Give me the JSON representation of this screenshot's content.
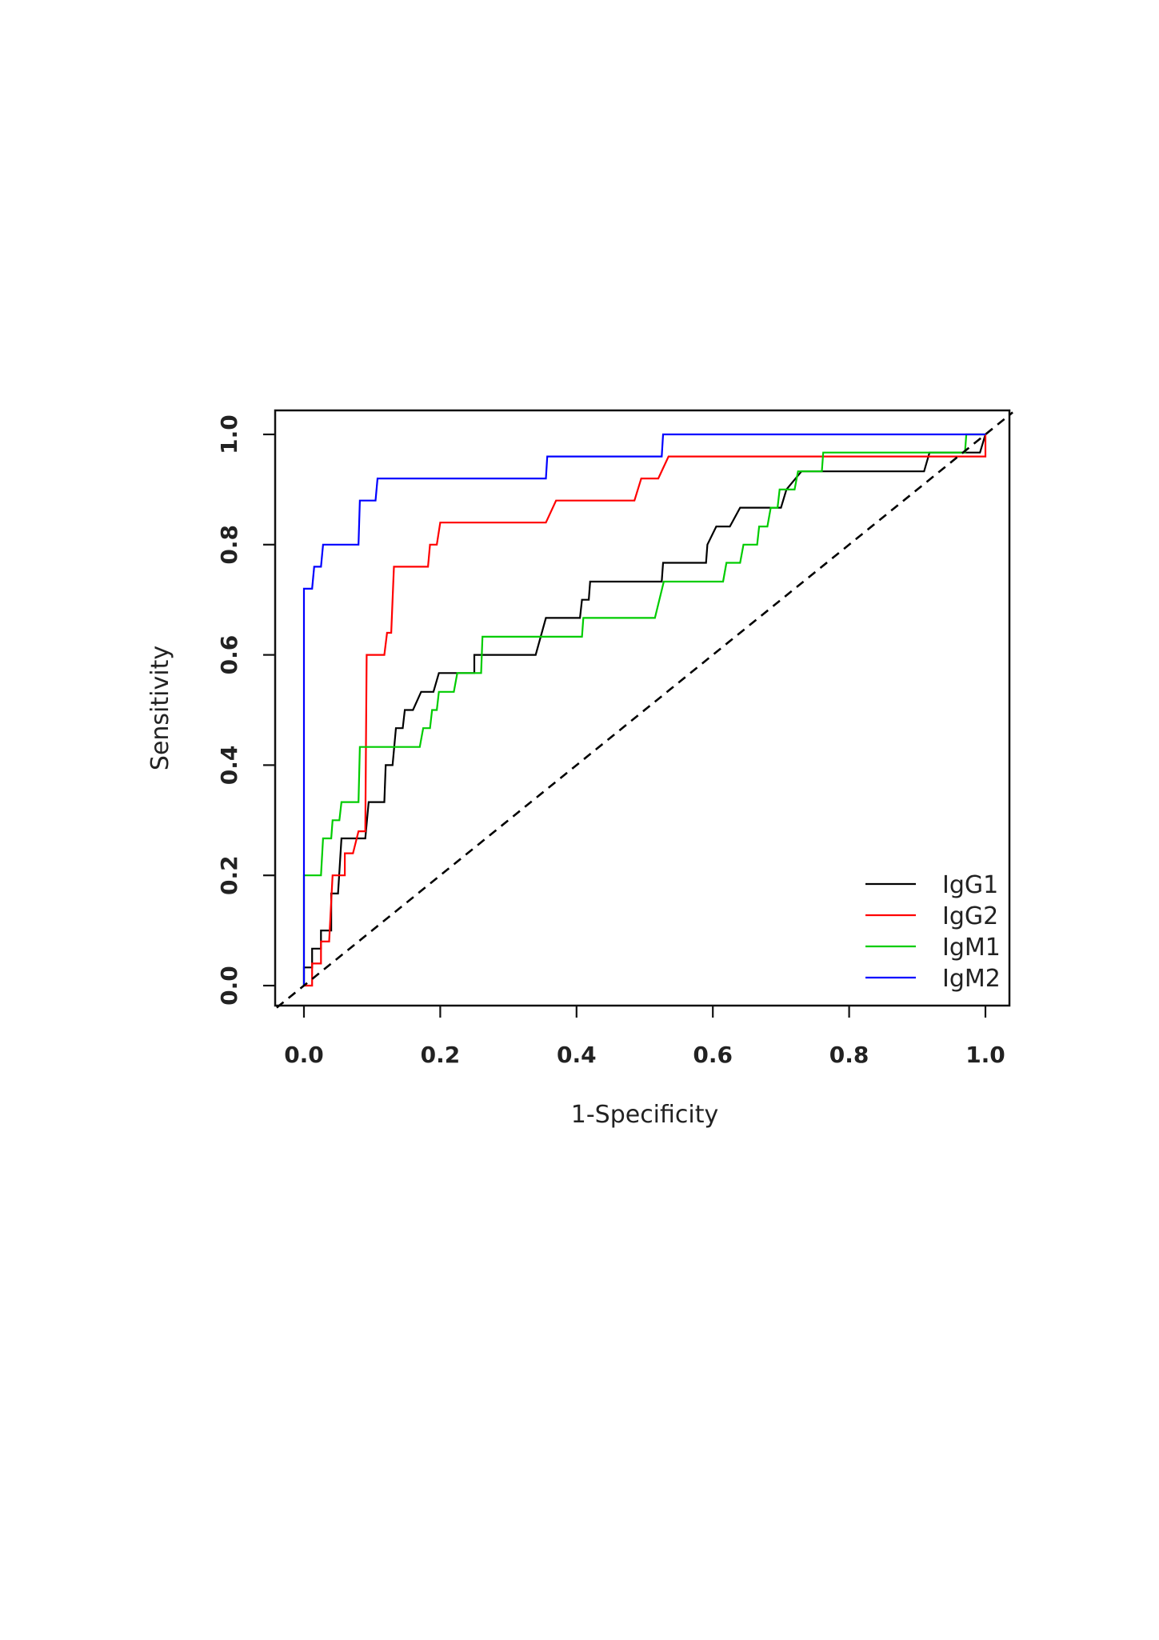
{
  "chart_data": {
    "type": "line",
    "title": "",
    "xlabel": "1-Specificity",
    "ylabel": "Sensitivity",
    "xlim": [
      0,
      1
    ],
    "ylim": [
      0,
      1
    ],
    "x_ticks": [
      "0.0",
      "0.2",
      "0.4",
      "0.6",
      "0.8",
      "1.0"
    ],
    "y_ticks": [
      "0.0",
      "0.2",
      "0.4",
      "0.6",
      "0.8",
      "1.0"
    ],
    "grid": false,
    "legend_position": "bottom-right",
    "reference_line": {
      "style": "dashed",
      "color": "#000000",
      "points": [
        [
          0,
          0
        ],
        [
          1,
          1
        ]
      ]
    },
    "series": [
      {
        "name": "IgG1",
        "color": "#000000",
        "points": [
          [
            0,
            0
          ],
          [
            0,
            0.033
          ],
          [
            0.012,
            0.033
          ],
          [
            0.012,
            0.067
          ],
          [
            0.025,
            0.067
          ],
          [
            0.025,
            0.1
          ],
          [
            0.04,
            0.1
          ],
          [
            0.04,
            0.167
          ],
          [
            0.05,
            0.167
          ],
          [
            0.055,
            0.267
          ],
          [
            0.09,
            0.267
          ],
          [
            0.095,
            0.333
          ],
          [
            0.118,
            0.333
          ],
          [
            0.12,
            0.4
          ],
          [
            0.13,
            0.4
          ],
          [
            0.135,
            0.467
          ],
          [
            0.145,
            0.467
          ],
          [
            0.148,
            0.5
          ],
          [
            0.16,
            0.5
          ],
          [
            0.172,
            0.533
          ],
          [
            0.19,
            0.533
          ],
          [
            0.198,
            0.567
          ],
          [
            0.25,
            0.567
          ],
          [
            0.25,
            0.6
          ],
          [
            0.34,
            0.6
          ],
          [
            0.355,
            0.667
          ],
          [
            0.405,
            0.667
          ],
          [
            0.408,
            0.7
          ],
          [
            0.418,
            0.7
          ],
          [
            0.42,
            0.733
          ],
          [
            0.525,
            0.733
          ],
          [
            0.527,
            0.767
          ],
          [
            0.59,
            0.767
          ],
          [
            0.592,
            0.8
          ],
          [
            0.605,
            0.833
          ],
          [
            0.625,
            0.833
          ],
          [
            0.64,
            0.867
          ],
          [
            0.7,
            0.867
          ],
          [
            0.708,
            0.9
          ],
          [
            0.73,
            0.933
          ],
          [
            0.91,
            0.933
          ],
          [
            0.918,
            0.967
          ],
          [
            0.992,
            0.967
          ],
          [
            1,
            1
          ]
        ]
      },
      {
        "name": "IgG2",
        "color": "#ff0000",
        "points": [
          [
            0,
            0
          ],
          [
            0.012,
            0
          ],
          [
            0.012,
            0.04
          ],
          [
            0.025,
            0.04
          ],
          [
            0.025,
            0.08
          ],
          [
            0.037,
            0.08
          ],
          [
            0.042,
            0.2
          ],
          [
            0.06,
            0.2
          ],
          [
            0.06,
            0.24
          ],
          [
            0.072,
            0.24
          ],
          [
            0.08,
            0.28
          ],
          [
            0.09,
            0.28
          ],
          [
            0.092,
            0.6
          ],
          [
            0.118,
            0.6
          ],
          [
            0.122,
            0.64
          ],
          [
            0.128,
            0.64
          ],
          [
            0.132,
            0.76
          ],
          [
            0.182,
            0.76
          ],
          [
            0.185,
            0.8
          ],
          [
            0.195,
            0.8
          ],
          [
            0.2,
            0.84
          ],
          [
            0.355,
            0.84
          ],
          [
            0.37,
            0.88
          ],
          [
            0.485,
            0.88
          ],
          [
            0.495,
            0.92
          ],
          [
            0.52,
            0.92
          ],
          [
            0.535,
            0.96
          ],
          [
            1,
            0.96
          ],
          [
            1,
            1
          ]
        ]
      },
      {
        "name": "IgM1",
        "color": "#00cc00",
        "points": [
          [
            0,
            0
          ],
          [
            0,
            0.2
          ],
          [
            0.025,
            0.2
          ],
          [
            0.028,
            0.267
          ],
          [
            0.04,
            0.267
          ],
          [
            0.042,
            0.3
          ],
          [
            0.052,
            0.3
          ],
          [
            0.055,
            0.333
          ],
          [
            0.08,
            0.333
          ],
          [
            0.082,
            0.433
          ],
          [
            0.17,
            0.433
          ],
          [
            0.175,
            0.467
          ],
          [
            0.185,
            0.467
          ],
          [
            0.188,
            0.5
          ],
          [
            0.195,
            0.5
          ],
          [
            0.198,
            0.533
          ],
          [
            0.22,
            0.533
          ],
          [
            0.225,
            0.567
          ],
          [
            0.26,
            0.567
          ],
          [
            0.262,
            0.633
          ],
          [
            0.408,
            0.633
          ],
          [
            0.41,
            0.667
          ],
          [
            0.515,
            0.667
          ],
          [
            0.528,
            0.733
          ],
          [
            0.615,
            0.733
          ],
          [
            0.62,
            0.767
          ],
          [
            0.64,
            0.767
          ],
          [
            0.645,
            0.8
          ],
          [
            0.665,
            0.8
          ],
          [
            0.668,
            0.833
          ],
          [
            0.68,
            0.833
          ],
          [
            0.685,
            0.867
          ],
          [
            0.695,
            0.867
          ],
          [
            0.698,
            0.9
          ],
          [
            0.72,
            0.9
          ],
          [
            0.725,
            0.933
          ],
          [
            0.76,
            0.933
          ],
          [
            0.762,
            0.967
          ],
          [
            0.97,
            0.967
          ],
          [
            0.972,
            1
          ],
          [
            1,
            1
          ]
        ]
      },
      {
        "name": "IgM2",
        "color": "#0000ff",
        "points": [
          [
            0,
            0
          ],
          [
            0,
            0.72
          ],
          [
            0.012,
            0.72
          ],
          [
            0.015,
            0.76
          ],
          [
            0.025,
            0.76
          ],
          [
            0.028,
            0.8
          ],
          [
            0.08,
            0.8
          ],
          [
            0.082,
            0.88
          ],
          [
            0.105,
            0.88
          ],
          [
            0.108,
            0.92
          ],
          [
            0.355,
            0.92
          ],
          [
            0.357,
            0.96
          ],
          [
            0.525,
            0.96
          ],
          [
            0.527,
            1
          ],
          [
            1,
            1
          ]
        ]
      }
    ]
  }
}
